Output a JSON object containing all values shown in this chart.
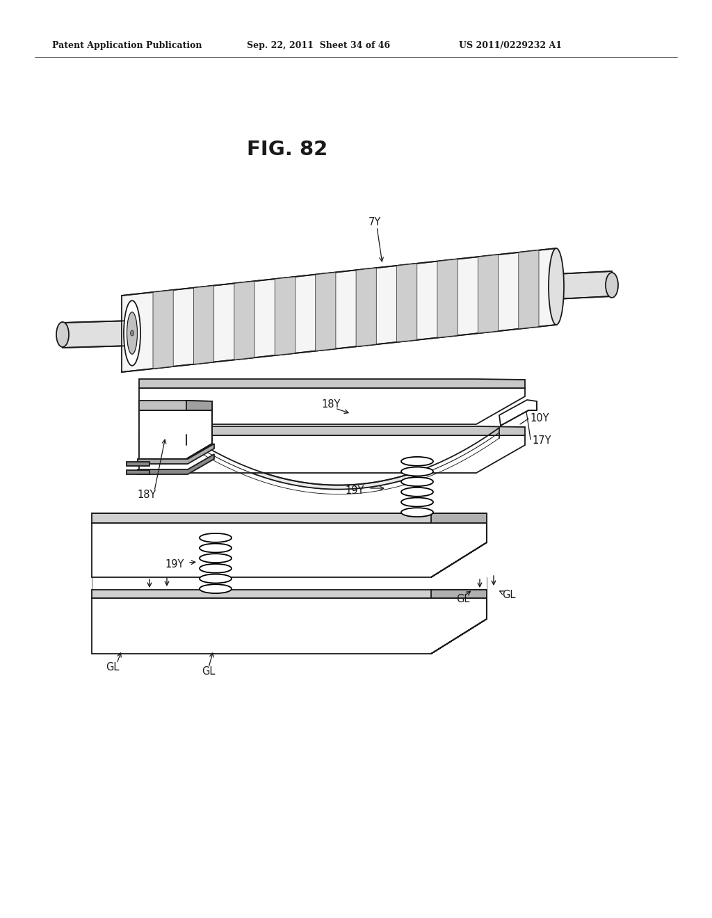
{
  "background": "#ffffff",
  "line_color": "#1a1a1a",
  "header_left": "Patent Application Publication",
  "header_center": "Sep. 22, 2011  Sheet 34 of 46",
  "header_right": "US 2011/0229232 A1",
  "fig_title": "FIG. 82",
  "label_fs": 10.5,
  "lw": 1.3
}
